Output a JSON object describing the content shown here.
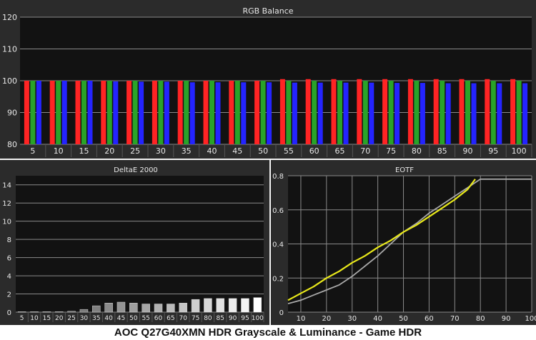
{
  "caption": "AOC Q27G40XMN HDR Grayscale & Luminance - Game HDR",
  "colors": {
    "panel_bg": "#2b2b2b",
    "plot_bg": "#121212",
    "grid": "#8a8a8a",
    "text": "#e6e6e6",
    "red": "#ff2424",
    "green": "#29a329",
    "blue": "#2424ff",
    "eotf_target": "#a8a8a8",
    "eotf_measured": "#e8e81a"
  },
  "chart_data": [
    {
      "type": "bar",
      "title": "RGB Balance",
      "xlabel": "",
      "ylabel": "",
      "ylim": [
        80,
        120
      ],
      "yticks": [
        80,
        90,
        100,
        110,
        120
      ],
      "grid": true,
      "categories": [
        "5",
        "10",
        "15",
        "20",
        "25",
        "30",
        "35",
        "40",
        "45",
        "50",
        "55",
        "60",
        "65",
        "70",
        "75",
        "80",
        "85",
        "90",
        "95",
        "100"
      ],
      "series": [
        {
          "color": "red",
          "values": [
            100,
            100,
            100,
            100,
            100,
            100,
            100,
            100,
            100,
            100,
            100.5,
            100.5,
            100.5,
            100.5,
            100.5,
            100.5,
            100.5,
            100.5,
            100.5,
            100.5
          ]
        },
        {
          "color": "green",
          "values": [
            100,
            100,
            100,
            100,
            100,
            100,
            100,
            100,
            100,
            100,
            100,
            100,
            100,
            100,
            100,
            100,
            100,
            100,
            100,
            100
          ]
        },
        {
          "color": "blue",
          "values": [
            100,
            100,
            100,
            99.8,
            99.7,
            99.7,
            99.5,
            99.5,
            99.5,
            99.5,
            99.4,
            99.4,
            99.4,
            99.4,
            99.3,
            99.3,
            99.2,
            99.2,
            99.2,
            99.2
          ]
        }
      ]
    },
    {
      "type": "bar",
      "title": "DeltaE 2000",
      "xlabel": "",
      "ylabel": "",
      "ylim": [
        0,
        15
      ],
      "yticks": [
        0,
        2,
        4,
        6,
        8,
        10,
        12,
        14
      ],
      "grid": true,
      "categories": [
        "5",
        "10",
        "15",
        "20",
        "25",
        "30",
        "35",
        "40",
        "45",
        "50",
        "55",
        "60",
        "65",
        "70",
        "75",
        "80",
        "85",
        "90",
        "95",
        "100"
      ],
      "values": [
        0.05,
        0.05,
        0.05,
        0.05,
        0.1,
        0.3,
        0.7,
        1.0,
        1.1,
        1.0,
        0.9,
        0.9,
        0.9,
        1.0,
        1.4,
        1.5,
        1.5,
        1.5,
        1.5,
        1.6
      ]
    },
    {
      "type": "line",
      "title": "EOTF",
      "xlabel": "",
      "ylabel": "",
      "xlim": [
        5,
        100
      ],
      "ylim": [
        0,
        0.8
      ],
      "xticks": [
        10,
        20,
        30,
        40,
        50,
        60,
        70,
        80,
        90,
        100
      ],
      "yticks": [
        0,
        0.2,
        0.4,
        0.6,
        0.8
      ],
      "grid": true,
      "series": [
        {
          "color": "eotf_target",
          "x": [
            5,
            10,
            15,
            20,
            25,
            30,
            35,
            40,
            45,
            50,
            55,
            60,
            65,
            70,
            75,
            80,
            85,
            90,
            95,
            100
          ],
          "y": [
            0.05,
            0.07,
            0.1,
            0.13,
            0.16,
            0.21,
            0.27,
            0.33,
            0.4,
            0.47,
            0.52,
            0.58,
            0.63,
            0.68,
            0.73,
            0.78,
            0.78,
            0.78,
            0.78,
            0.78
          ]
        },
        {
          "color": "eotf_measured",
          "x": [
            5,
            10,
            15,
            20,
            25,
            30,
            35,
            40,
            45,
            50,
            55,
            60,
            65,
            70,
            75,
            78
          ],
          "y": [
            0.07,
            0.11,
            0.15,
            0.2,
            0.24,
            0.29,
            0.33,
            0.38,
            0.42,
            0.47,
            0.51,
            0.56,
            0.61,
            0.66,
            0.72,
            0.78
          ]
        }
      ]
    }
  ]
}
